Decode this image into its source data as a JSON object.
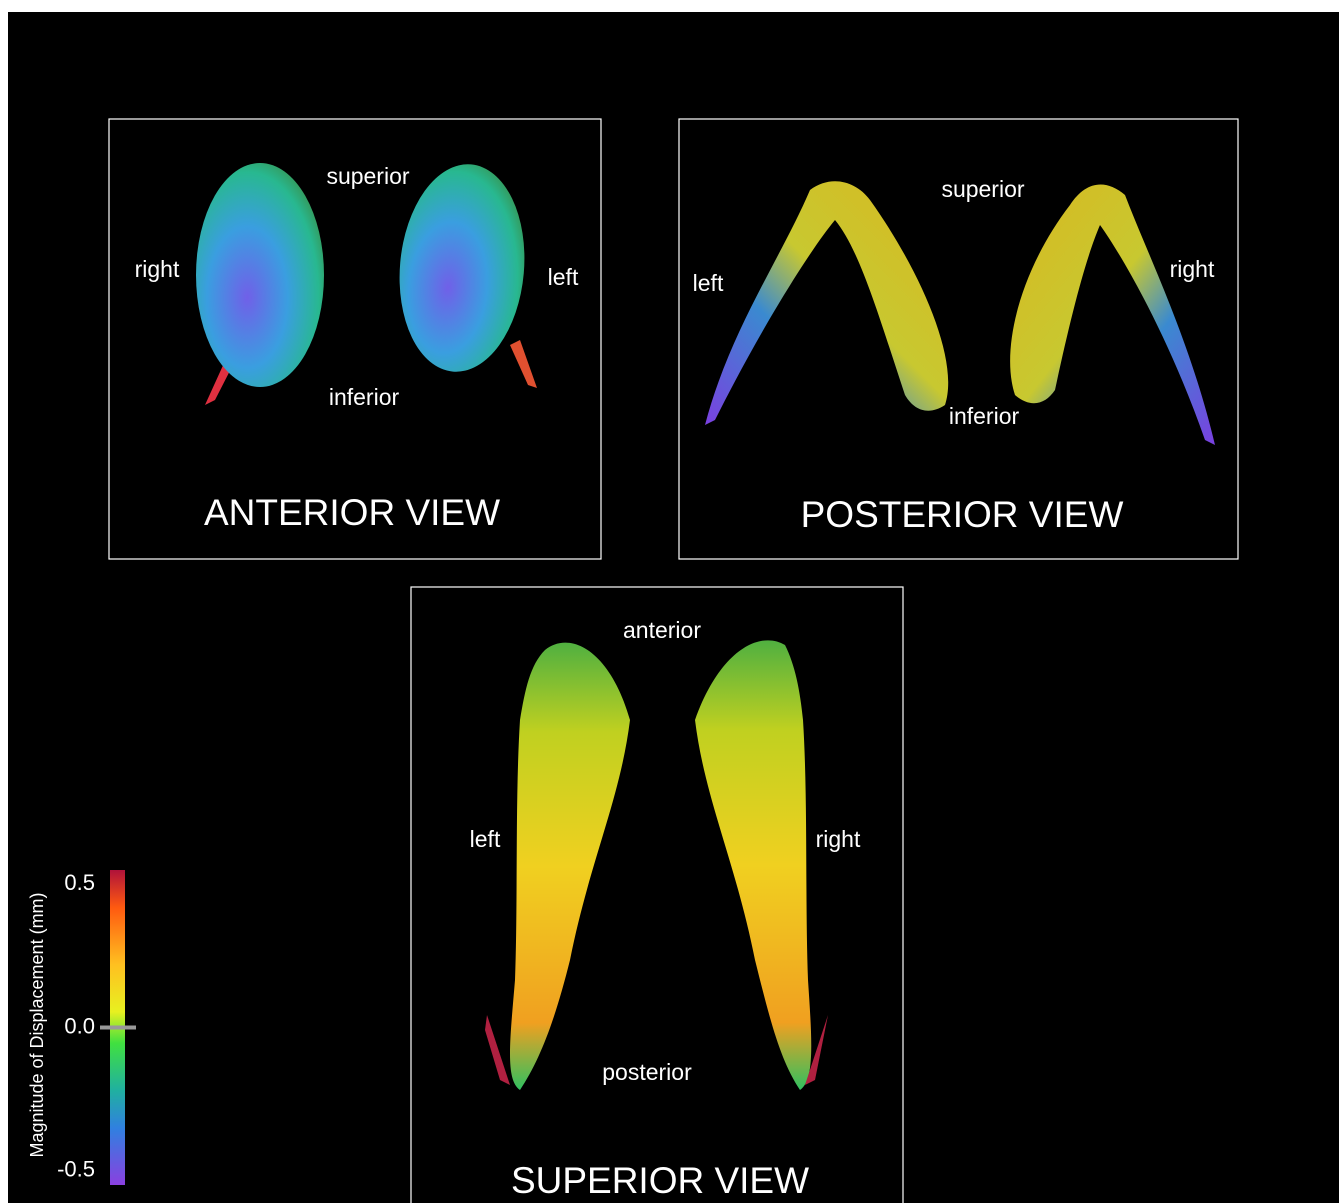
{
  "panels": [
    {
      "title": "ANTERIOR VIEW",
      "labels": [
        "superior",
        "right",
        "left",
        "inferior"
      ]
    },
    {
      "title": "POSTERIOR VIEW",
      "labels": [
        "superior",
        "left",
        "right",
        "inferior"
      ]
    },
    {
      "title": "SUPERIOR VIEW",
      "labels": [
        "anterior",
        "left",
        "right",
        "posterior"
      ]
    }
  ],
  "colorbar": {
    "label": "Magnitude of  Displacement (mm)",
    "lim": [
      -0.55,
      0.55
    ],
    "ticks": [
      0.5,
      {
        "value": 0,
        "label": "0.0"
      },
      -0.5
    ]
  }
}
